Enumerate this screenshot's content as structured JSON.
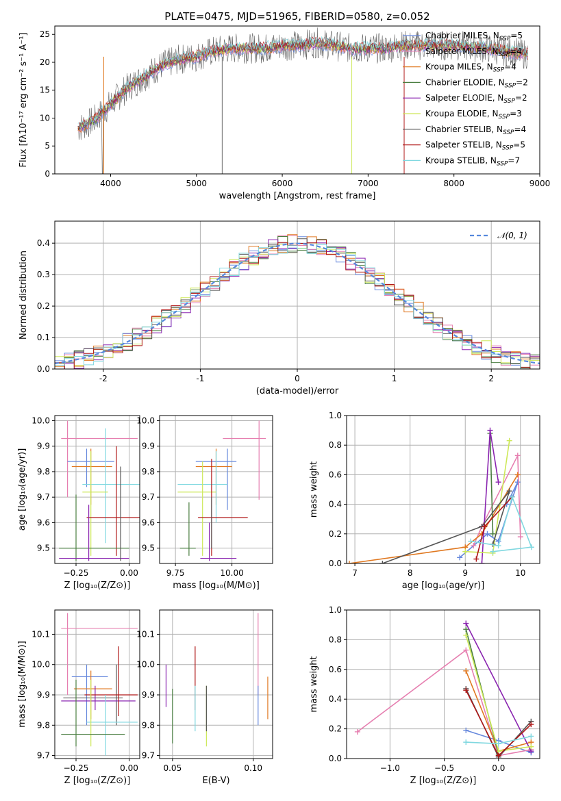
{
  "colors": [
    "#6688dd",
    "#e67fb0",
    "#e07820",
    "#4a7e40",
    "#8a25b0",
    "#cde858",
    "#555555",
    "#b01818",
    "#80d8e0"
  ],
  "chart_data": [
    {
      "id": "spectrum",
      "type": "line",
      "title": "PLATE=0475, MJD=51965, FIBERID=0580, z=0.052",
      "xlabel": "wavelength [Angstrom, rest frame]",
      "ylabel": "Flux [fλ10⁻¹⁷ erg cm⁻² s⁻¹ A⁻¹]",
      "xlim": [
        3350,
        9000
      ],
      "ylim": [
        0,
        26.5
      ],
      "xticks": [
        4000,
        5000,
        6000,
        7000,
        8000,
        9000
      ],
      "yticks": [
        0,
        5,
        10,
        15,
        20,
        25
      ],
      "legend_position": "right",
      "legend": [
        "Chabrier MILES, N_SSP=5",
        "Salpeter MILES, N_SSP=4",
        "Kroupa MILES, N_SSP=4",
        "Chabrier ELODIE, N_SSP=2",
        "Salpeter ELODIE, N_SSP=2",
        "Kroupa ELODIE, N_SSP=3",
        "Chabrier STELIB, N_SSP=4",
        "Salpeter STELIB, N_SSP=5",
        "Kroupa STELIB, N_SSP=7"
      ],
      "continuum": [
        [
          3600,
          8
        ],
        [
          3800,
          9.5
        ],
        [
          4000,
          12.5
        ],
        [
          4200,
          15.5
        ],
        [
          4400,
          17.5
        ],
        [
          4600,
          19.5
        ],
        [
          4800,
          20.5
        ],
        [
          5000,
          21
        ],
        [
          5200,
          22
        ],
        [
          5400,
          22.5
        ],
        [
          5600,
          22.5
        ],
        [
          5800,
          22.5
        ],
        [
          6000,
          23
        ],
        [
          6200,
          23
        ],
        [
          6400,
          23.5
        ],
        [
          6600,
          23
        ],
        [
          6800,
          22.5
        ],
        [
          7000,
          22.5
        ],
        [
          7200,
          22.5
        ],
        [
          7400,
          23
        ],
        [
          7600,
          23
        ],
        [
          8000,
          23
        ],
        [
          8400,
          22.5
        ],
        [
          8800,
          21.5
        ]
      ]
    },
    {
      "id": "residuals",
      "type": "line",
      "xlabel": "(data-model)/error",
      "ylabel": "Normed distribution",
      "xlim": [
        -2.5,
        2.5
      ],
      "ylim": [
        0,
        0.47
      ],
      "xticks": [
        -2,
        -1,
        0,
        1,
        2
      ],
      "yticks": [
        0.0,
        0.1,
        0.2,
        0.3,
        0.4
      ],
      "legend": [
        "𝒩(0, 1)"
      ],
      "legend_position": "top-right",
      "gaussian": {
        "mean": 0,
        "sigma": 1
      }
    },
    {
      "id": "z-age",
      "type": "scatter",
      "xlabel": "Z [log₁₀(Z/Z⊙)]",
      "ylabel": "age  [log₁₀(age/yr)]",
      "xlim": [
        -0.35,
        0.05
      ],
      "ylim": [
        9.44,
        10.02
      ],
      "xticks": [
        -0.25,
        0.0
      ],
      "xticklabels": [
        "−0.25",
        "0.00"
      ],
      "yticks": [
        9.5,
        9.6,
        9.7,
        9.8,
        9.9,
        10.0
      ]
    },
    {
      "id": "mass-age",
      "type": "scatter",
      "xlabel": "mass [log₁₀(M/M⊙)]",
      "xlim": [
        9.68,
        10.18
      ],
      "ylim": [
        9.44,
        10.02
      ],
      "xticks": [
        9.75,
        10.0
      ],
      "xticklabels": [
        "9.75",
        "10.00"
      ],
      "yticks": [
        9.5,
        9.6,
        9.7,
        9.8,
        9.9,
        10.0
      ]
    },
    {
      "id": "age-weight",
      "type": "line",
      "xlabel": "age  [log₁₀(age/yr)]",
      "ylabel": "mass weight",
      "xlim": [
        6.85,
        10.35
      ],
      "ylim": [
        0,
        1
      ],
      "xticks": [
        7,
        8,
        9,
        10
      ],
      "yticks": [
        0.0,
        0.2,
        0.4,
        0.6,
        0.8,
        1.0
      ],
      "series": [
        {
          "color": 0,
          "points": [
            [
              8.9,
              0.04
            ],
            [
              9.4,
              0.2
            ],
            [
              9.6,
              0.15
            ],
            [
              9.95,
              0.55
            ],
            [
              9.75,
              0.4
            ]
          ]
        },
        {
          "color": 1,
          "points": [
            [
              9.15,
              0.12
            ],
            [
              9.3,
              0.25
            ],
            [
              9.95,
              0.73
            ],
            [
              10.0,
              0.18
            ]
          ]
        },
        {
          "color": 2,
          "points": [
            [
              6.9,
              0.0
            ],
            [
              9.0,
              0.11
            ],
            [
              9.3,
              0.2
            ],
            [
              9.95,
              0.6
            ]
          ]
        },
        {
          "color": 3,
          "points": [
            [
              9.5,
              0.2
            ],
            [
              9.45,
              0.88
            ]
          ]
        },
        {
          "color": 4,
          "points": [
            [
              9.3,
              0.0
            ],
            [
              9.45,
              0.9
            ],
            [
              9.6,
              0.55
            ]
          ]
        },
        {
          "color": 5,
          "points": [
            [
              9.0,
              0.08
            ],
            [
              9.5,
              0.07
            ],
            [
              9.8,
              0.83
            ]
          ]
        },
        {
          "color": 6,
          "points": [
            [
              7.5,
              0.0
            ],
            [
              9.3,
              0.25
            ],
            [
              9.8,
              0.49
            ],
            [
              9.5,
              0.13
            ]
          ]
        },
        {
          "color": 7,
          "points": [
            [
              9.2,
              0.03
            ],
            [
              9.35,
              0.25
            ],
            [
              9.85,
              0.45
            ]
          ]
        },
        {
          "color": 8,
          "points": [
            [
              9.1,
              0.15
            ],
            [
              9.6,
              0.12
            ],
            [
              9.85,
              0.45
            ],
            [
              10.2,
              0.11
            ],
            [
              9.5,
              0.08
            ]
          ]
        }
      ]
    },
    {
      "id": "z-mass",
      "type": "scatter",
      "xlabel": "Z [log₁₀(Z/Z⊙)]",
      "ylabel": "mass [log₁₀(M/M⊙)]",
      "xlim": [
        -0.35,
        0.05
      ],
      "ylim": [
        9.69,
        10.18
      ],
      "xticks": [
        -0.25,
        0.0
      ],
      "xticklabels": [
        "−0.25",
        "0.00"
      ],
      "yticks": [
        9.7,
        9.8,
        9.9,
        10.0,
        10.1
      ]
    },
    {
      "id": "ebv-mass",
      "type": "scatter",
      "xlabel": "E(B-V)",
      "xlim": [
        0.042,
        0.112
      ],
      "ylim": [
        9.69,
        10.18
      ],
      "xticks": [
        0.05,
        0.1
      ],
      "xticklabels": [
        "0.05",
        "0.10"
      ],
      "yticks": [
        9.7,
        9.8,
        9.9,
        10.0,
        10.1
      ]
    },
    {
      "id": "z-weight",
      "type": "line",
      "xlabel": "Z [log₁₀(Z/Z⊙)]",
      "ylabel": "mass weight",
      "xlim": [
        -1.4,
        0.38
      ],
      "ylim": [
        0,
        1
      ],
      "xticks": [
        -1.0,
        -0.5,
        0.0
      ],
      "xticklabels": [
        "−1.0",
        "−0.5",
        "0.0"
      ],
      "yticks": [
        0.0,
        0.2,
        0.4,
        0.6,
        0.8,
        1.0
      ],
      "series": [
        {
          "color": 0,
          "points": [
            [
              -0.3,
              0.19
            ],
            [
              0.0,
              0.12
            ],
            [
              0.3,
              0.04
            ]
          ]
        },
        {
          "color": 1,
          "points": [
            [
              -1.3,
              0.18
            ],
            [
              -0.3,
              0.73
            ],
            [
              0.0,
              0.02
            ],
            [
              0.3,
              0.06
            ]
          ]
        },
        {
          "color": 2,
          "points": [
            [
              -0.3,
              0.59
            ],
            [
              0.0,
              0.05
            ],
            [
              0.3,
              0.11
            ]
          ]
        },
        {
          "color": 3,
          "points": [
            [
              -0.3,
              0.87
            ],
            [
              0.0,
              0.03
            ]
          ]
        },
        {
          "color": 4,
          "points": [
            [
              -0.3,
              0.91
            ],
            [
              0.3,
              0.05
            ]
          ]
        },
        {
          "color": 5,
          "points": [
            [
              -0.3,
              0.83
            ],
            [
              0.0,
              0.05
            ],
            [
              0.3,
              0.08
            ]
          ]
        },
        {
          "color": 6,
          "points": [
            [
              -0.3,
              0.47
            ],
            [
              0.0,
              0.01
            ],
            [
              0.3,
              0.25
            ]
          ]
        },
        {
          "color": 7,
          "points": [
            [
              -0.3,
              0.46
            ],
            [
              0.0,
              0.02
            ],
            [
              0.3,
              0.23
            ]
          ]
        },
        {
          "color": 8,
          "points": [
            [
              -0.3,
              0.11
            ],
            [
              0.0,
              0.1
            ],
            [
              0.3,
              0.15
            ]
          ]
        }
      ]
    }
  ]
}
